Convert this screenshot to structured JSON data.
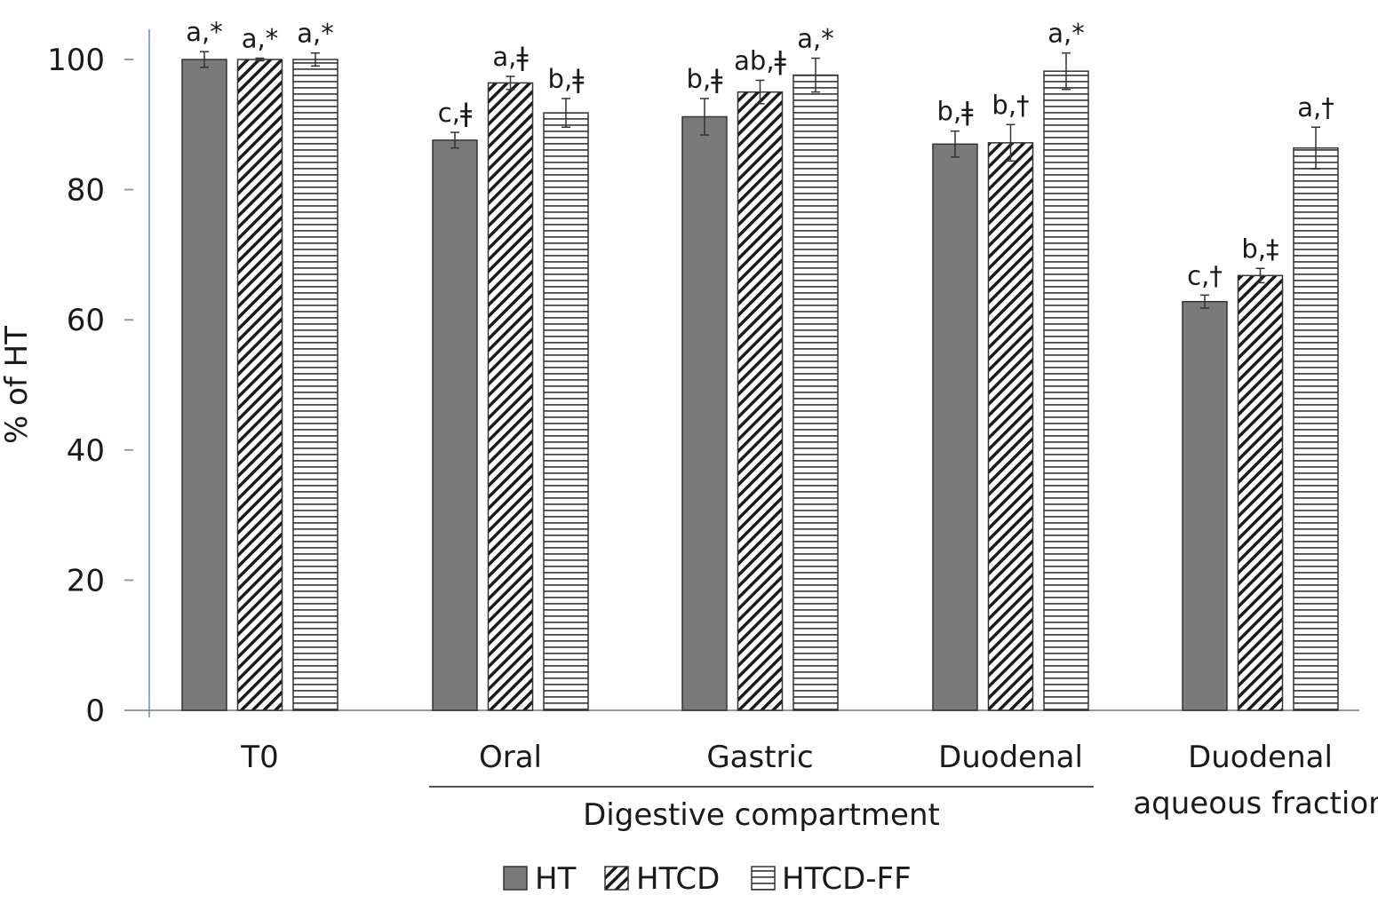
{
  "chart_data": {
    "type": "bar",
    "title": "",
    "xlabel": "",
    "ylabel": "% of HT",
    "ylim": [
      0,
      100
    ],
    "yticks": [
      0,
      20,
      40,
      60,
      80,
      100
    ],
    "grid": false,
    "legend_position": "bottom",
    "categories": [
      "T0",
      "Oral",
      "Gastric",
      "Duodenal",
      "Duodenal aqueous fraction"
    ],
    "category_lines": [
      [
        "T0"
      ],
      [
        "Oral"
      ],
      [
        "Gastric"
      ],
      [
        "Duodenal"
      ],
      [
        "Duodenal",
        "aqueous fraction"
      ]
    ],
    "group_annotation": {
      "label": "Digestive compartment",
      "categories": [
        "Oral",
        "Gastric",
        "Duodenal"
      ]
    },
    "series": [
      {
        "name": "HT",
        "pattern": "solid",
        "color": "#7a7a7a",
        "values": [
          100,
          87.6,
          91.2,
          87.0,
          62.8
        ],
        "errors": [
          1.2,
          1.2,
          2.8,
          2.0,
          1.0
        ],
        "labels": [
          "a,*",
          "c,ǂ",
          "b,ǂ",
          "b,ǂ",
          "c,†"
        ]
      },
      {
        "name": "HTCD",
        "pattern": "diagonal-hatch",
        "color": "#ffffff",
        "values": [
          100,
          96.4,
          95.0,
          87.2,
          66.8
        ],
        "errors": [
          0.2,
          1.0,
          1.8,
          2.8,
          1.1
        ],
        "labels": [
          "a,*",
          "a,ǂ",
          "ab,ǂ",
          "b,†",
          "b,‡"
        ]
      },
      {
        "name": "HTCD-FF",
        "pattern": "horizontal-hatch",
        "color": "#ffffff",
        "values": [
          100,
          91.8,
          97.6,
          98.2,
          86.4
        ],
        "errors": [
          1.0,
          2.2,
          2.6,
          2.8,
          3.2
        ],
        "labels": [
          "a,*",
          "b,ǂ",
          "a,*",
          "a,*",
          "a,†"
        ]
      }
    ]
  }
}
